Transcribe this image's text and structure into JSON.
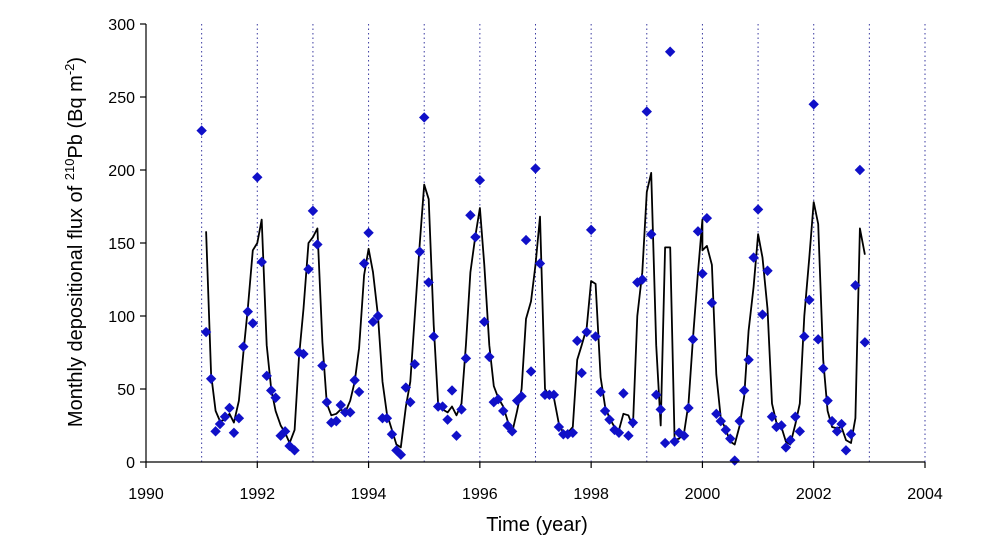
{
  "chart_data": {
    "type": "scatter",
    "xlabel": "Time (year)",
    "ylabel": {
      "prefix": "Monthly depositional flux of ",
      "isotope_mass": "210",
      "element": "Pb",
      "unit_open": " (Bq m",
      "unit_exp": "-2",
      "unit_close": ")"
    },
    "xlim": [
      1990,
      2004
    ],
    "ylim": [
      0,
      300
    ],
    "x_ticks": [
      1990,
      1992,
      1994,
      1996,
      1998,
      2000,
      2002,
      2004
    ],
    "y_ticks": [
      0,
      50,
      100,
      150,
      200,
      250,
      300
    ],
    "vertical_gridlines_years": [
      1991,
      1992,
      1993,
      1994,
      1995,
      1996,
      1997,
      1998,
      1999,
      2000,
      2001,
      2002,
      2003,
      2004
    ],
    "colors": {
      "observed_marker": "#1010c8",
      "model_line": "#000000",
      "gridline": "#3a3aa0"
    },
    "series": [
      {
        "kind": "observed",
        "marker": "diamond",
        "points": [
          [
            1991.0,
            227
          ],
          [
            1991.08,
            89
          ],
          [
            1991.17,
            57
          ],
          [
            1991.25,
            21
          ],
          [
            1991.33,
            26
          ],
          [
            1991.42,
            31
          ],
          [
            1991.5,
            37
          ],
          [
            1991.58,
            20
          ],
          [
            1991.67,
            30
          ],
          [
            1991.75,
            79
          ],
          [
            1991.83,
            103
          ],
          [
            1991.92,
            95
          ],
          [
            1992.0,
            195
          ],
          [
            1992.08,
            137
          ],
          [
            1992.17,
            59
          ],
          [
            1992.25,
            49
          ],
          [
            1992.33,
            44
          ],
          [
            1992.42,
            18
          ],
          [
            1992.5,
            21
          ],
          [
            1992.58,
            11
          ],
          [
            1992.67,
            8
          ],
          [
            1992.75,
            75
          ],
          [
            1992.83,
            74
          ],
          [
            1992.92,
            132
          ],
          [
            1993.0,
            172
          ],
          [
            1993.08,
            149
          ],
          [
            1993.17,
            66
          ],
          [
            1993.25,
            41
          ],
          [
            1993.33,
            27
          ],
          [
            1993.42,
            28
          ],
          [
            1993.5,
            39
          ],
          [
            1993.58,
            34
          ],
          [
            1993.67,
            34
          ],
          [
            1993.75,
            56
          ],
          [
            1993.83,
            48
          ],
          [
            1993.92,
            136
          ],
          [
            1994.0,
            157
          ],
          [
            1994.08,
            96
          ],
          [
            1994.17,
            100
          ],
          [
            1994.25,
            30
          ],
          [
            1994.33,
            30
          ],
          [
            1994.42,
            19
          ],
          [
            1994.5,
            8
          ],
          [
            1994.58,
            5
          ],
          [
            1994.67,
            51
          ],
          [
            1994.75,
            41
          ],
          [
            1994.83,
            67
          ],
          [
            1994.92,
            144
          ],
          [
            1995.0,
            236
          ],
          [
            1995.08,
            123
          ],
          [
            1995.17,
            86
          ],
          [
            1995.25,
            38
          ],
          [
            1995.33,
            38
          ],
          [
            1995.42,
            29
          ],
          [
            1995.5,
            49
          ],
          [
            1995.58,
            18
          ],
          [
            1995.67,
            36
          ],
          [
            1995.75,
            71
          ],
          [
            1995.83,
            169
          ],
          [
            1995.92,
            154
          ],
          [
            1996.0,
            193
          ],
          [
            1996.08,
            96
          ],
          [
            1996.17,
            72
          ],
          [
            1996.25,
            41
          ],
          [
            1996.33,
            43
          ],
          [
            1996.42,
            35
          ],
          [
            1996.5,
            25
          ],
          [
            1996.58,
            21
          ],
          [
            1996.67,
            42
          ],
          [
            1996.75,
            45
          ],
          [
            1996.83,
            152
          ],
          [
            1996.92,
            62
          ],
          [
            1997.0,
            201
          ],
          [
            1997.08,
            136
          ],
          [
            1997.17,
            46
          ],
          [
            1997.25,
            46
          ],
          [
            1997.33,
            46
          ],
          [
            1997.42,
            24
          ],
          [
            1997.5,
            19
          ],
          [
            1997.58,
            19
          ],
          [
            1997.67,
            20
          ],
          [
            1997.75,
            83
          ],
          [
            1997.83,
            61
          ],
          [
            1997.92,
            89
          ],
          [
            1998.0,
            159
          ],
          [
            1998.08,
            86
          ],
          [
            1998.17,
            48
          ],
          [
            1998.25,
            35
          ],
          [
            1998.33,
            29
          ],
          [
            1998.42,
            22
          ],
          [
            1998.5,
            20
          ],
          [
            1998.58,
            47
          ],
          [
            1998.67,
            18
          ],
          [
            1998.75,
            27
          ],
          [
            1998.83,
            123
          ],
          [
            1998.92,
            125
          ],
          [
            1999.0,
            240
          ],
          [
            1999.08,
            156
          ],
          [
            1999.17,
            46
          ],
          [
            1999.25,
            36
          ],
          [
            1999.33,
            13
          ],
          [
            1999.42,
            281
          ],
          [
            1999.5,
            14
          ],
          [
            1999.58,
            20
          ],
          [
            1999.67,
            18
          ],
          [
            1999.75,
            37
          ],
          [
            1999.83,
            84
          ],
          [
            1999.92,
            158
          ],
          [
            2000.0,
            129
          ],
          [
            2000.08,
            167
          ],
          [
            2000.17,
            109
          ],
          [
            2000.25,
            33
          ],
          [
            2000.33,
            28
          ],
          [
            2000.42,
            22
          ],
          [
            2000.5,
            16
          ],
          [
            2000.58,
            1
          ],
          [
            2000.67,
            28
          ],
          [
            2000.75,
            49
          ],
          [
            2000.83,
            70
          ],
          [
            2000.92,
            140
          ],
          [
            2001.0,
            173
          ],
          [
            2001.08,
            101
          ],
          [
            2001.17,
            131
          ],
          [
            2001.25,
            31
          ],
          [
            2001.33,
            24
          ],
          [
            2001.42,
            25
          ],
          [
            2001.5,
            10
          ],
          [
            2001.58,
            15
          ],
          [
            2001.67,
            31
          ],
          [
            2001.75,
            21
          ],
          [
            2001.83,
            86
          ],
          [
            2001.92,
            111
          ],
          [
            2002.0,
            245
          ],
          [
            2002.08,
            84
          ],
          [
            2002.17,
            64
          ],
          [
            2002.25,
            42
          ],
          [
            2002.33,
            28
          ],
          [
            2002.42,
            21
          ],
          [
            2002.5,
            26
          ],
          [
            2002.58,
            8
          ],
          [
            2002.67,
            19
          ],
          [
            2002.75,
            121
          ],
          [
            2002.83,
            200
          ],
          [
            2002.92,
            82
          ]
        ]
      },
      {
        "kind": "model",
        "style": "line",
        "points": [
          [
            1991.08,
            158
          ],
          [
            1991.17,
            60
          ],
          [
            1991.25,
            35
          ],
          [
            1991.33,
            28
          ],
          [
            1991.42,
            29
          ],
          [
            1991.5,
            33
          ],
          [
            1991.58,
            27
          ],
          [
            1991.67,
            42
          ],
          [
            1991.75,
            75
          ],
          [
            1991.83,
            105
          ],
          [
            1991.92,
            145
          ],
          [
            2000.0,
            166
          ],
          [
            1992.0,
            150
          ],
          [
            1992.08,
            166
          ],
          [
            1992.17,
            80
          ],
          [
            1992.25,
            50
          ],
          [
            1992.33,
            35
          ],
          [
            1992.42,
            25
          ],
          [
            1992.5,
            20
          ],
          [
            1992.58,
            13
          ],
          [
            1992.67,
            22
          ],
          [
            1992.75,
            72
          ],
          [
            1992.83,
            105
          ],
          [
            1992.92,
            150
          ],
          [
            1993.0,
            154
          ],
          [
            1993.08,
            160
          ],
          [
            1993.17,
            82
          ],
          [
            1993.25,
            40
          ],
          [
            1993.33,
            32
          ],
          [
            1993.42,
            33
          ],
          [
            1993.5,
            36
          ],
          [
            1993.58,
            34
          ],
          [
            1993.67,
            42
          ],
          [
            1993.75,
            55
          ],
          [
            1993.83,
            78
          ],
          [
            1993.92,
            128
          ],
          [
            1994.0,
            146
          ],
          [
            1994.08,
            130
          ],
          [
            1994.17,
            100
          ],
          [
            1994.25,
            55
          ],
          [
            1994.33,
            33
          ],
          [
            1994.42,
            22
          ],
          [
            1994.5,
            12
          ],
          [
            1994.58,
            10
          ],
          [
            1994.67,
            38
          ],
          [
            1994.75,
            55
          ],
          [
            1994.83,
            100
          ],
          [
            1994.92,
            150
          ],
          [
            1995.0,
            190
          ],
          [
            1995.08,
            180
          ],
          [
            1995.17,
            94
          ],
          [
            1995.25,
            40
          ],
          [
            1995.33,
            36
          ],
          [
            1995.42,
            34
          ],
          [
            1995.5,
            38
          ],
          [
            1995.58,
            32
          ],
          [
            1995.67,
            40
          ],
          [
            1995.75,
            80
          ],
          [
            1995.83,
            130
          ],
          [
            1995.92,
            155
          ],
          [
            1996.0,
            174
          ],
          [
            1996.08,
            135
          ],
          [
            1996.17,
            80
          ],
          [
            1996.25,
            52
          ],
          [
            1996.33,
            44
          ],
          [
            1996.42,
            38
          ],
          [
            1996.5,
            28
          ],
          [
            1996.58,
            20
          ],
          [
            1996.67,
            35
          ],
          [
            1996.75,
            50
          ],
          [
            1996.83,
            98
          ],
          [
            1996.92,
            110
          ],
          [
            1997.0,
            135
          ],
          [
            1997.08,
            168
          ],
          [
            1997.17,
            50
          ],
          [
            1997.25,
            45
          ],
          [
            1997.33,
            44
          ],
          [
            1997.42,
            26
          ],
          [
            1997.5,
            20
          ],
          [
            1997.58,
            20
          ],
          [
            1997.67,
            24
          ],
          [
            1997.75,
            70
          ],
          [
            1997.83,
            80
          ],
          [
            1997.92,
            92
          ],
          [
            1998.0,
            124
          ],
          [
            1998.08,
            122
          ],
          [
            1998.17,
            58
          ],
          [
            1998.25,
            38
          ],
          [
            1998.33,
            30
          ],
          [
            1998.42,
            24
          ],
          [
            1998.5,
            22
          ],
          [
            1998.58,
            33
          ],
          [
            1998.67,
            32
          ],
          [
            1998.75,
            24
          ],
          [
            1998.83,
            100
          ],
          [
            1998.92,
            130
          ],
          [
            1999.0,
            185
          ],
          [
            1999.08,
            198
          ],
          [
            1999.17,
            80
          ],
          [
            1999.25,
            25
          ],
          [
            1999.33,
            147
          ],
          [
            1999.42,
            147
          ],
          [
            1999.5,
            15
          ],
          [
            1999.58,
            16
          ],
          [
            1999.67,
            20
          ],
          [
            1999.75,
            40
          ],
          [
            1999.83,
            85
          ],
          [
            1999.92,
            130
          ],
          [
            2000.0,
            145
          ],
          [
            2000.08,
            148
          ],
          [
            2000.17,
            135
          ],
          [
            2000.25,
            60
          ],
          [
            2000.33,
            30
          ],
          [
            2000.42,
            22
          ],
          [
            2000.5,
            14
          ],
          [
            2000.58,
            12
          ],
          [
            2000.67,
            25
          ],
          [
            2000.75,
            45
          ],
          [
            2000.83,
            90
          ],
          [
            2000.92,
            120
          ],
          [
            2001.0,
            156
          ],
          [
            2001.08,
            140
          ],
          [
            2001.17,
            105
          ],
          [
            2001.25,
            40
          ],
          [
            2001.33,
            27
          ],
          [
            2001.42,
            24
          ],
          [
            2001.5,
            14
          ],
          [
            2001.58,
            12
          ],
          [
            2001.67,
            26
          ],
          [
            2001.75,
            40
          ],
          [
            2001.83,
            100
          ],
          [
            2001.92,
            140
          ],
          [
            2002.0,
            178
          ],
          [
            2002.08,
            163
          ],
          [
            2002.17,
            70
          ],
          [
            2002.25,
            35
          ],
          [
            2002.33,
            24
          ],
          [
            2002.42,
            23
          ],
          [
            2002.5,
            24
          ],
          [
            2002.58,
            15
          ],
          [
            2002.67,
            13
          ],
          [
            2002.75,
            30
          ],
          [
            2002.83,
            160
          ],
          [
            2002.92,
            142
          ]
        ]
      }
    ]
  }
}
